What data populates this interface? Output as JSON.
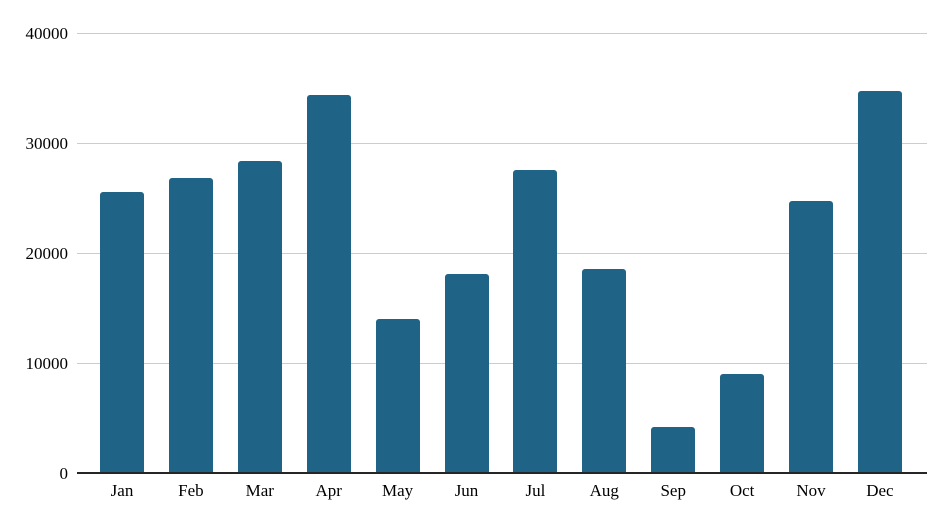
{
  "chart_data": {
    "type": "bar",
    "title": "",
    "xlabel": "",
    "ylabel": "",
    "categories": [
      "Jan",
      "Feb",
      "Mar",
      "Apr",
      "May",
      "Jun",
      "Jul",
      "Aug",
      "Sep",
      "Oct",
      "Nov",
      "Dec"
    ],
    "values": [
      25500,
      26800,
      28400,
      34400,
      14000,
      18100,
      27500,
      18500,
      4200,
      9000,
      24700,
      34700
    ],
    "ylim": [
      0,
      40000
    ],
    "yticks": [
      0,
      10000,
      20000,
      30000,
      40000
    ],
    "ytick_labels": [
      "0",
      "10000",
      "20000",
      "30000",
      "40000"
    ],
    "grid": true,
    "legend": false,
    "colors": {
      "bar": "#1f6386",
      "gridline": "#cccccc",
      "axis_line": "#262626",
      "text": "#000000",
      "background": "#ffffff"
    }
  }
}
